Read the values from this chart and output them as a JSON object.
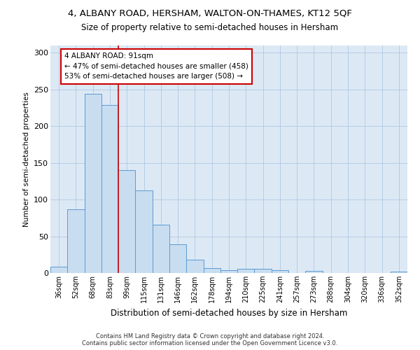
{
  "title": "4, ALBANY ROAD, HERSHAM, WALTON-ON-THAMES, KT12 5QF",
  "subtitle": "Size of property relative to semi-detached houses in Hersham",
  "xlabel": "Distribution of semi-detached houses by size in Hersham",
  "ylabel": "Number of semi-detached properties",
  "categories": [
    "36sqm",
    "52sqm",
    "68sqm",
    "83sqm",
    "99sqm",
    "115sqm",
    "131sqm",
    "146sqm",
    "162sqm",
    "178sqm",
    "194sqm",
    "210sqm",
    "225sqm",
    "241sqm",
    "257sqm",
    "273sqm",
    "288sqm",
    "304sqm",
    "320sqm",
    "336sqm",
    "352sqm"
  ],
  "values": [
    9,
    87,
    244,
    229,
    140,
    113,
    66,
    39,
    18,
    7,
    4,
    6,
    6,
    4,
    0,
    3,
    0,
    0,
    0,
    0,
    2
  ],
  "bar_color": "#c9ddf0",
  "bar_edge_color": "#5b9bd5",
  "annotation_text_line1": "4 ALBANY ROAD: 91sqm",
  "annotation_text_line2": "← 47% of semi-detached houses are smaller (458)",
  "annotation_text_line3": "53% of semi-detached houses are larger (508) →",
  "annotation_box_facecolor": "#ffffff",
  "annotation_box_edgecolor": "#cc0000",
  "vline_color": "#cc0000",
  "vline_x_index": 3.5,
  "ylim": [
    0,
    310
  ],
  "yticks": [
    0,
    50,
    100,
    150,
    200,
    250,
    300
  ],
  "footer_line1": "Contains HM Land Registry data © Crown copyright and database right 2024.",
  "footer_line2": "Contains public sector information licensed under the Open Government Licence v3.0.",
  "background_color": "#ffffff",
  "plot_bg_color": "#dce9f5",
  "grid_color": "#b0c8e0"
}
